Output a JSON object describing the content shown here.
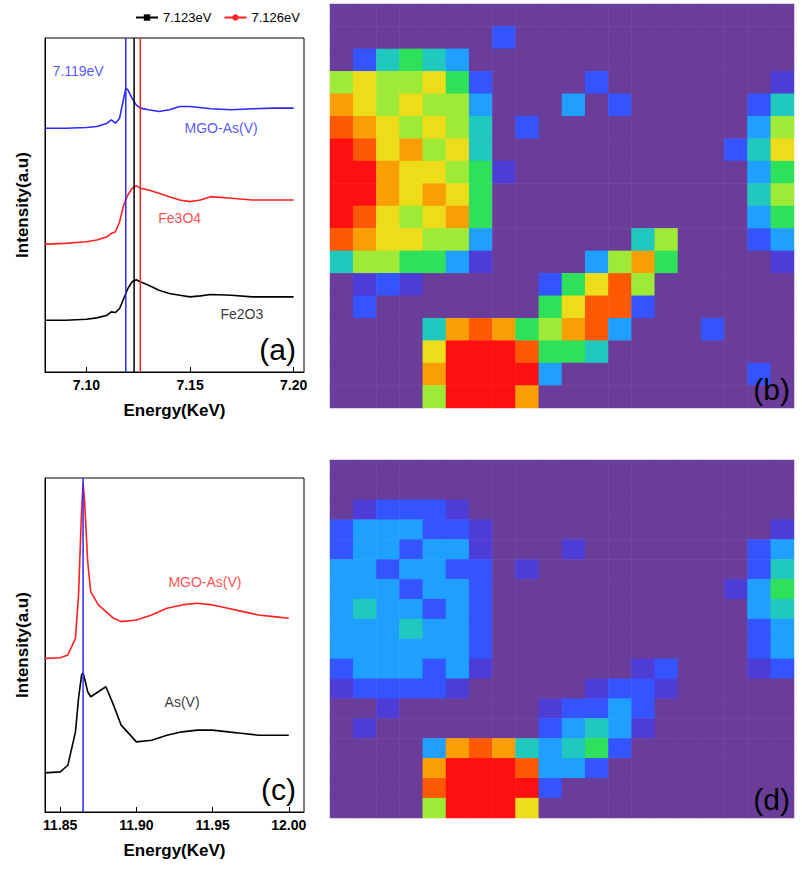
{
  "chart_data": [
    {
      "type": "line",
      "panel_label": "(a)",
      "x_label": "Energy(KeV)",
      "y_label": "Intensity(a.u)",
      "xlim": [
        7.08,
        7.205
      ],
      "xticks": [
        {
          "value": 7.1,
          "label": "7.10"
        },
        {
          "value": 7.15,
          "label": "7.15"
        },
        {
          "value": 7.2,
          "label": "7.20"
        }
      ],
      "ylim": [
        0,
        10
      ],
      "tick_labels": "x",
      "grid": false,
      "legend": "top",
      "series": [
        {
          "name": "MGO-As(V)",
          "color": "#2a2aff",
          "label_at": [
            7.165,
            7.3
          ],
          "x": [
            7.08,
            7.09,
            7.1,
            7.105,
            7.11,
            7.112,
            7.114,
            7.116,
            7.118,
            7.119,
            7.12,
            7.122,
            7.124,
            7.126,
            7.13,
            7.135,
            7.14,
            7.145,
            7.15,
            7.16,
            7.17,
            7.18,
            7.19,
            7.2
          ],
          "values": [
            7.3,
            7.3,
            7.32,
            7.35,
            7.45,
            7.55,
            7.45,
            7.6,
            8.2,
            8.5,
            8.45,
            8.2,
            8.0,
            7.9,
            7.85,
            7.8,
            7.85,
            7.95,
            7.95,
            7.88,
            7.85,
            7.88,
            7.9,
            7.9
          ]
        },
        {
          "name": "Fe3O4",
          "color": "#ff2020",
          "label_at": [
            7.145,
            4.6
          ],
          "x": [
            7.08,
            7.09,
            7.1,
            7.105,
            7.11,
            7.112,
            7.114,
            7.116,
            7.118,
            7.12,
            7.122,
            7.124,
            7.126,
            7.13,
            7.135,
            7.14,
            7.145,
            7.15,
            7.155,
            7.16,
            7.17,
            7.18,
            7.19,
            7.2
          ],
          "values": [
            3.83,
            3.85,
            3.9,
            3.95,
            4.05,
            4.15,
            4.2,
            4.5,
            5.0,
            5.3,
            5.5,
            5.58,
            5.5,
            5.45,
            5.35,
            5.25,
            5.15,
            5.1,
            5.15,
            5.25,
            5.2,
            5.15,
            5.15,
            5.15
          ]
        },
        {
          "name": "Fe2O3",
          "color": "#000000",
          "label_at": [
            7.175,
            1.75
          ],
          "x": [
            7.08,
            7.09,
            7.1,
            7.105,
            7.11,
            7.112,
            7.114,
            7.116,
            7.118,
            7.12,
            7.122,
            7.124,
            7.126,
            7.13,
            7.135,
            7.14,
            7.145,
            7.15,
            7.155,
            7.16,
            7.17,
            7.18,
            7.19,
            7.2
          ],
          "values": [
            1.55,
            1.55,
            1.58,
            1.62,
            1.7,
            1.8,
            1.78,
            1.9,
            2.2,
            2.5,
            2.7,
            2.76,
            2.7,
            2.6,
            2.45,
            2.35,
            2.3,
            2.25,
            2.28,
            2.32,
            2.3,
            2.25,
            2.25,
            2.25
          ]
        }
      ],
      "vlines": [
        {
          "name": "7.119eV",
          "x": 7.119,
          "color": "#2a2aff",
          "label_at": [
            7.096,
            9.0
          ]
        },
        {
          "name": "7.123eV",
          "x": 7.123,
          "color": "#000000",
          "marker": "square"
        },
        {
          "name": "7.126eV",
          "x": 7.126,
          "color": "#ff2020",
          "marker": "circle"
        }
      ]
    },
    {
      "type": "heatmap",
      "panel_label": "(b)",
      "tick_labels": false,
      "zlim": [
        0,
        10
      ],
      "cells": [
        [
          0,
          0,
          0,
          0,
          0,
          0,
          0,
          0,
          0,
          0,
          0,
          0,
          0,
          0,
          0,
          0,
          0,
          0,
          0,
          0
        ],
        [
          0,
          0,
          0,
          0,
          0,
          0,
          0,
          2,
          0,
          0,
          0,
          0,
          0,
          0,
          0,
          0,
          0,
          0,
          0,
          0
        ],
        [
          0,
          2,
          4,
          5,
          4,
          3,
          0,
          0,
          0,
          0,
          0,
          0,
          0,
          0,
          0,
          0,
          0,
          0,
          0,
          0
        ],
        [
          6,
          7,
          6,
          6,
          7,
          5,
          2,
          0,
          0,
          0,
          0,
          2,
          0,
          0,
          0,
          0,
          0,
          0,
          0,
          1
        ],
        [
          8,
          7,
          6,
          7,
          6,
          6,
          3,
          0,
          0,
          0,
          3,
          0,
          2,
          0,
          0,
          0,
          0,
          0,
          2,
          4
        ],
        [
          9,
          8,
          7,
          6,
          7,
          6,
          4,
          0,
          2,
          0,
          0,
          0,
          0,
          0,
          0,
          0,
          0,
          0,
          3,
          6
        ],
        [
          10,
          9,
          7,
          8,
          6,
          7,
          4,
          0,
          0,
          0,
          0,
          0,
          0,
          0,
          0,
          0,
          0,
          2,
          4,
          7
        ],
        [
          10,
          10,
          8,
          7,
          7,
          6,
          5,
          1,
          0,
          0,
          0,
          0,
          0,
          0,
          0,
          0,
          0,
          0,
          3,
          5
        ],
        [
          10,
          10,
          8,
          7,
          8,
          7,
          5,
          0,
          0,
          0,
          0,
          0,
          0,
          0,
          0,
          0,
          0,
          0,
          4,
          6
        ],
        [
          10,
          9,
          7,
          6,
          7,
          8,
          5,
          0,
          0,
          0,
          0,
          0,
          0,
          0,
          0,
          0,
          0,
          0,
          3,
          5
        ],
        [
          9,
          8,
          7,
          7,
          6,
          6,
          3,
          0,
          0,
          0,
          0,
          0,
          0,
          4,
          6,
          0,
          0,
          0,
          2,
          3
        ],
        [
          4,
          6,
          6,
          5,
          5,
          3,
          1,
          0,
          0,
          0,
          0,
          3,
          6,
          8,
          5,
          0,
          0,
          0,
          0,
          1
        ],
        [
          0,
          1,
          2,
          1,
          0,
          0,
          0,
          0,
          0,
          2,
          5,
          7,
          9,
          6,
          0,
          0,
          0,
          0,
          0,
          0
        ],
        [
          0,
          2,
          0,
          0,
          0,
          0,
          0,
          0,
          0,
          5,
          7,
          9,
          9,
          2,
          0,
          0,
          0,
          0,
          0,
          0
        ],
        [
          0,
          0,
          0,
          0,
          4,
          8,
          9,
          8,
          5,
          6,
          8,
          9,
          3,
          0,
          0,
          0,
          2,
          0,
          0,
          0
        ],
        [
          0,
          0,
          0,
          0,
          7,
          10,
          10,
          10,
          9,
          5,
          5,
          4,
          0,
          0,
          0,
          0,
          0,
          0,
          0,
          0
        ],
        [
          0,
          0,
          0,
          0,
          8,
          10,
          10,
          10,
          10,
          3,
          0,
          0,
          0,
          0,
          0,
          0,
          0,
          0,
          2,
          0
        ],
        [
          0,
          0,
          0,
          0,
          6,
          10,
          10,
          10,
          8,
          0,
          0,
          0,
          0,
          0,
          0,
          0,
          0,
          0,
          0,
          0
        ]
      ]
    },
    {
      "type": "line",
      "panel_label": "(c)",
      "x_label": "Energy(KeV)",
      "y_label": "Intensity(a.u)",
      "xlim": [
        11.84,
        12.01
      ],
      "xticks": [
        {
          "value": 11.85,
          "label": "11.85"
        },
        {
          "value": 11.9,
          "label": "11.90"
        },
        {
          "value": 11.95,
          "label": "11.95"
        },
        {
          "value": 12.0,
          "label": "12.00"
        }
      ],
      "ylim": [
        0,
        10
      ],
      "tick_labels": "x",
      "grid": false,
      "series": [
        {
          "name": "MGO-As(V)",
          "color": "#ff2020",
          "label_at": [
            11.945,
            6.9
          ],
          "x": [
            11.84,
            11.85,
            11.855,
            11.86,
            11.862,
            11.864,
            11.865,
            11.866,
            11.868,
            11.87,
            11.875,
            11.88,
            11.885,
            11.89,
            11.9,
            11.91,
            11.92,
            11.93,
            11.94,
            11.95,
            11.96,
            11.97,
            11.98,
            11.99,
            12.0
          ],
          "values": [
            4.6,
            4.62,
            4.7,
            5.2,
            6.5,
            9.0,
            9.85,
            9.3,
            7.5,
            6.6,
            6.2,
            6.0,
            5.8,
            5.7,
            5.75,
            5.9,
            6.1,
            6.2,
            6.25,
            6.2,
            6.1,
            6.0,
            5.9,
            5.85,
            5.8
          ]
        },
        {
          "name": "As(V)",
          "color": "#000000",
          "label_at": [
            11.93,
            3.3
          ],
          "x": [
            11.84,
            11.85,
            11.855,
            11.86,
            11.862,
            11.864,
            11.865,
            11.866,
            11.868,
            11.87,
            11.875,
            11.88,
            11.885,
            11.89,
            11.9,
            11.91,
            11.92,
            11.93,
            11.94,
            11.95,
            11.96,
            11.97,
            11.98,
            11.99,
            12.0
          ],
          "values": [
            1.17,
            1.2,
            1.4,
            2.4,
            3.4,
            4.1,
            4.16,
            4.0,
            3.6,
            3.45,
            3.6,
            3.75,
            3.2,
            2.6,
            2.1,
            2.15,
            2.3,
            2.4,
            2.45,
            2.45,
            2.4,
            2.35,
            2.3,
            2.3,
            2.3
          ]
        }
      ],
      "vlines": [
        {
          "x": 11.865,
          "color": "#2a2aff"
        }
      ]
    },
    {
      "type": "heatmap",
      "panel_label": "(d)",
      "tick_labels": false,
      "zlim": [
        0,
        10
      ],
      "cells": [
        [
          0,
          0,
          0,
          0,
          0,
          0,
          0,
          0,
          0,
          0,
          0,
          0,
          0,
          0,
          0,
          0,
          0,
          0,
          0,
          0
        ],
        [
          0,
          0,
          0,
          0,
          0,
          0,
          0,
          0,
          0,
          0,
          0,
          0,
          0,
          0,
          0,
          0,
          0,
          0,
          0,
          0
        ],
        [
          0,
          1,
          2,
          2,
          2,
          1,
          0,
          0,
          0,
          0,
          0,
          0,
          0,
          0,
          0,
          0,
          0,
          0,
          0,
          0
        ],
        [
          2,
          3,
          3,
          3,
          2,
          2,
          1,
          0,
          0,
          0,
          0,
          0,
          0,
          0,
          0,
          0,
          0,
          0,
          0,
          1
        ],
        [
          2,
          3,
          3,
          2,
          3,
          3,
          1,
          0,
          0,
          0,
          1,
          0,
          0,
          0,
          0,
          0,
          0,
          0,
          2,
          3
        ],
        [
          3,
          3,
          2,
          3,
          3,
          2,
          2,
          0,
          1,
          0,
          0,
          0,
          0,
          0,
          0,
          0,
          0,
          0,
          2,
          4
        ],
        [
          3,
          3,
          3,
          2,
          3,
          3,
          2,
          0,
          0,
          0,
          0,
          0,
          0,
          0,
          0,
          0,
          0,
          1,
          3,
          5
        ],
        [
          3,
          4,
          3,
          3,
          2,
          3,
          2,
          0,
          0,
          0,
          0,
          0,
          0,
          0,
          0,
          0,
          0,
          0,
          3,
          4
        ],
        [
          3,
          3,
          3,
          4,
          3,
          3,
          2,
          0,
          0,
          0,
          0,
          0,
          0,
          0,
          0,
          0,
          0,
          0,
          2,
          3
        ],
        [
          3,
          3,
          3,
          3,
          3,
          3,
          2,
          0,
          0,
          0,
          0,
          0,
          0,
          0,
          0,
          0,
          0,
          0,
          2,
          3
        ],
        [
          2,
          3,
          3,
          3,
          2,
          3,
          1,
          0,
          0,
          0,
          0,
          0,
          0,
          1,
          2,
          0,
          0,
          0,
          1,
          2
        ],
        [
          1,
          2,
          2,
          2,
          2,
          1,
          0,
          0,
          0,
          0,
          0,
          1,
          2,
          2,
          1,
          0,
          0,
          0,
          0,
          0
        ],
        [
          0,
          0,
          1,
          0,
          0,
          0,
          0,
          0,
          0,
          1,
          2,
          2,
          3,
          2,
          0,
          0,
          0,
          0,
          0,
          0
        ],
        [
          0,
          1,
          0,
          0,
          0,
          0,
          0,
          0,
          0,
          2,
          3,
          4,
          3,
          1,
          0,
          0,
          0,
          0,
          0,
          0
        ],
        [
          0,
          0,
          0,
          0,
          3,
          8,
          9,
          8,
          4,
          3,
          4,
          5,
          2,
          0,
          0,
          0,
          0,
          0,
          0,
          0
        ],
        [
          0,
          0,
          0,
          0,
          8,
          10,
          10,
          10,
          9,
          3,
          3,
          2,
          0,
          0,
          0,
          0,
          0,
          0,
          0,
          0
        ],
        [
          0,
          0,
          0,
          0,
          9,
          10,
          10,
          10,
          10,
          2,
          0,
          0,
          0,
          0,
          0,
          0,
          0,
          0,
          0,
          0
        ],
        [
          0,
          0,
          0,
          0,
          6,
          10,
          10,
          10,
          7,
          0,
          0,
          0,
          0,
          0,
          0,
          0,
          0,
          0,
          0,
          0
        ]
      ]
    }
  ]
}
